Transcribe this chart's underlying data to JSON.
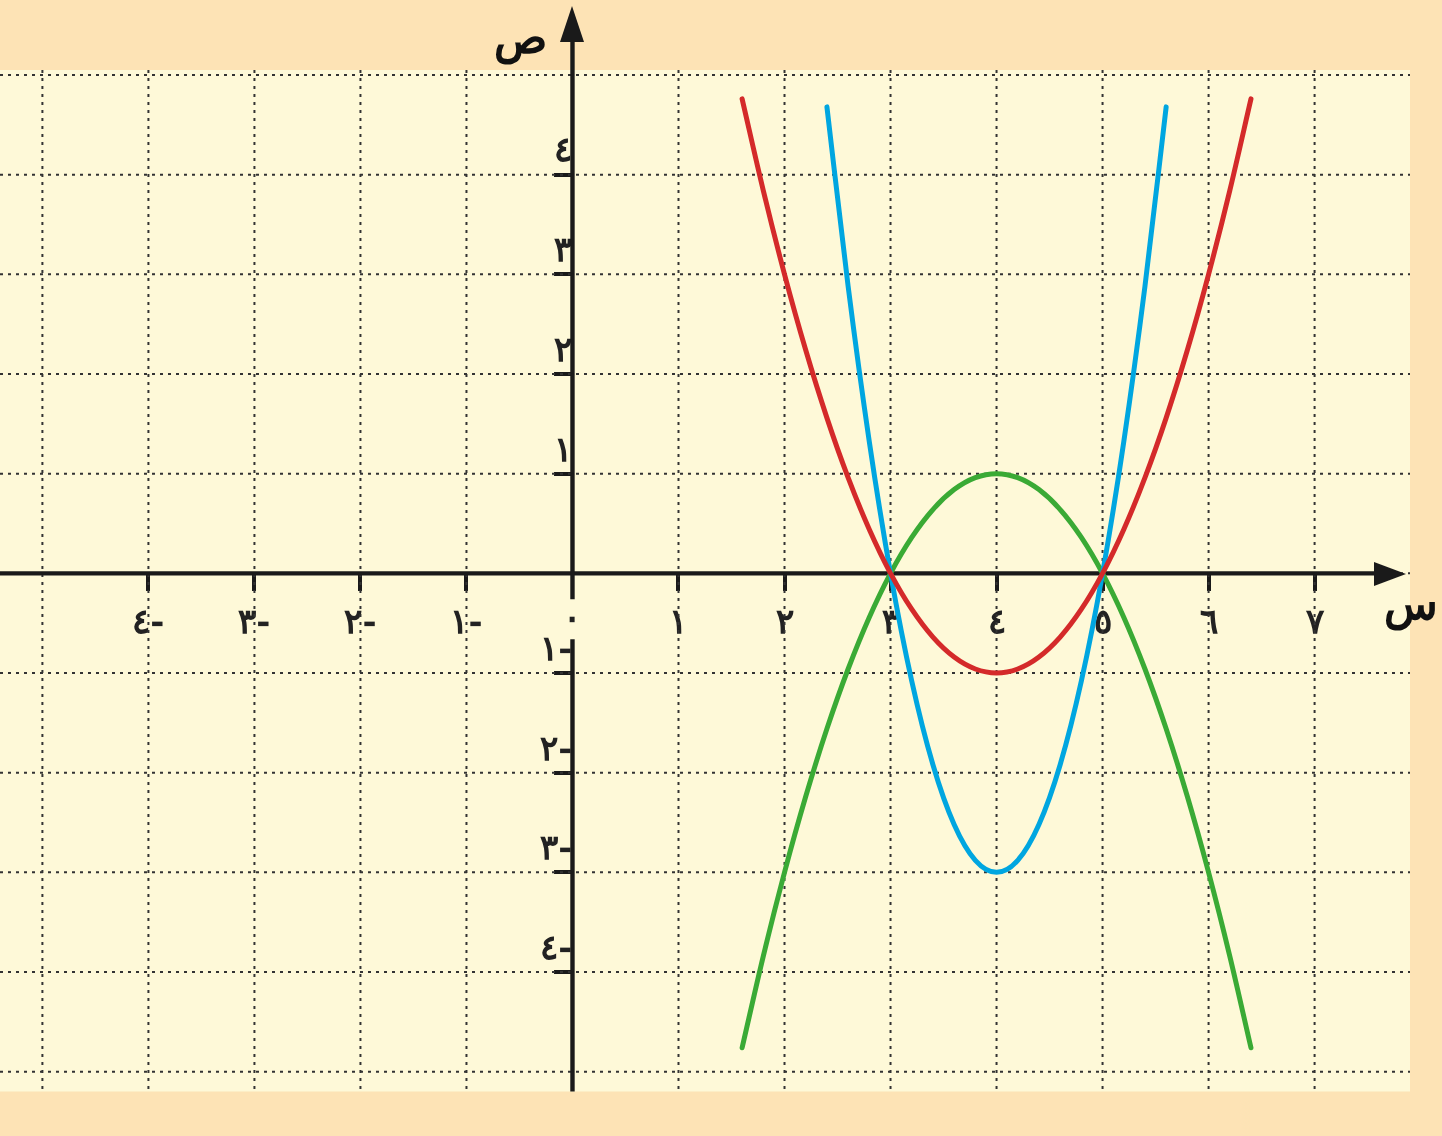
{
  "chart_data": {
    "type": "line",
    "xlabel": "س",
    "ylabel": "ص",
    "xlim": [
      -5.4,
      7.9
    ],
    "ylim": [
      -5.2,
      5.05
    ],
    "xticks": [
      {
        "value": -5,
        "label": null
      },
      {
        "value": -4,
        "label": "٤-"
      },
      {
        "value": -3,
        "label": "٣-"
      },
      {
        "value": -2,
        "label": "٢-"
      },
      {
        "value": -1,
        "label": "١-"
      },
      {
        "value": 0,
        "label": "٠"
      },
      {
        "value": 1,
        "label": "١"
      },
      {
        "value": 2,
        "label": "٢"
      },
      {
        "value": 3,
        "label": "٣"
      },
      {
        "value": 4,
        "label": "٤"
      },
      {
        "value": 5,
        "label": "٥"
      },
      {
        "value": 6,
        "label": "٦"
      },
      {
        "value": 7,
        "label": "٧"
      }
    ],
    "yticks": [
      {
        "value": -5,
        "label": null
      },
      {
        "value": -4,
        "label": "٤-"
      },
      {
        "value": -3,
        "label": "٣-"
      },
      {
        "value": -2,
        "label": "٢-"
      },
      {
        "value": -1,
        "label": "١-"
      },
      {
        "value": 0,
        "label": null
      },
      {
        "value": 1,
        "label": "١"
      },
      {
        "value": 2,
        "label": "٢"
      },
      {
        "value": 3,
        "label": "٣"
      },
      {
        "value": 4,
        "label": "٤"
      },
      {
        "value": 5,
        "label": null
      }
    ],
    "grid": true,
    "legend": false,
    "marker": "none",
    "line_style": "solid",
    "series": [
      {
        "color": "#d42a2a",
        "x": [
          1.6,
          1.8,
          2.0,
          2.2,
          2.4,
          2.6,
          2.8,
          3.0,
          3.2,
          3.4,
          3.6,
          3.8,
          4.0,
          4.2,
          4.4,
          4.6,
          4.8,
          5.0,
          5.2,
          5.4,
          5.6,
          5.8,
          6.0,
          6.2,
          6.4
        ],
        "values": [
          4.76,
          3.84,
          3,
          2.24,
          1.56,
          0.96,
          0.44,
          0,
          -0.36,
          -0.64,
          -0.84,
          -0.96,
          -1,
          -0.96,
          -0.84,
          -0.64,
          -0.36,
          0,
          0.44,
          0.96,
          1.56,
          2.24,
          3,
          3.84,
          4.76
        ]
      },
      {
        "color": "#00a6e0",
        "x": [
          2.4,
          2.6,
          2.8,
          3.0,
          3.2,
          3.4,
          3.6,
          3.8,
          4.0,
          4.2,
          4.4,
          4.6,
          4.8,
          5.0,
          5.2,
          5.4,
          5.6
        ],
        "values": [
          4.68,
          2.88,
          1.32,
          0,
          -1.08,
          -1.92,
          -2.52,
          -2.88,
          -3,
          -2.88,
          -2.52,
          -1.92,
          -1.08,
          0,
          1.32,
          2.88,
          4.68
        ]
      },
      {
        "color": "#3aaa35",
        "x": [
          1.6,
          1.8,
          2.0,
          2.2,
          2.4,
          2.6,
          2.8,
          3.0,
          3.2,
          3.4,
          3.6,
          3.8,
          4.0,
          4.2,
          4.4,
          4.6,
          4.8,
          5.0,
          5.2,
          5.4,
          5.6,
          5.8,
          6.0,
          6.2,
          6.4
        ],
        "values": [
          -4.76,
          -3.84,
          -3,
          -2.24,
          -1.56,
          -0.96,
          -0.44,
          0,
          0.36,
          0.64,
          0.84,
          0.96,
          1,
          0.96,
          0.84,
          0.64,
          0.36,
          0,
          -0.44,
          -0.96,
          -1.56,
          -2.24,
          -3,
          -3.84,
          -4.76
        ]
      }
    ]
  }
}
